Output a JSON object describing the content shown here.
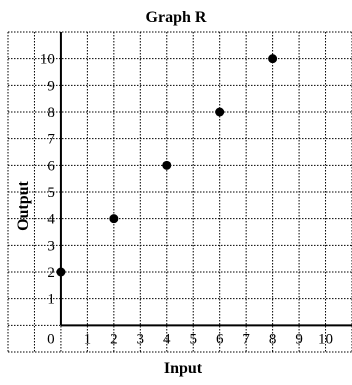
{
  "chart_data": {
    "type": "scatter",
    "title": "Graph R",
    "xlabel": "Input",
    "ylabel": "Output",
    "xlim": [
      0,
      10
    ],
    "ylim": [
      0,
      10
    ],
    "grid": true,
    "x_ticks": [
      "0",
      "1",
      "2",
      "3",
      "4",
      "5",
      "6",
      "7",
      "8",
      "9",
      "10"
    ],
    "y_ticks": [
      "1",
      "2",
      "3",
      "4",
      "5",
      "6",
      "7",
      "8",
      "9",
      "10"
    ],
    "points": [
      {
        "x": 0,
        "y": 2
      },
      {
        "x": 2,
        "y": 4
      },
      {
        "x": 4,
        "y": 6
      },
      {
        "x": 6,
        "y": 8
      },
      {
        "x": 8,
        "y": 10
      }
    ]
  }
}
